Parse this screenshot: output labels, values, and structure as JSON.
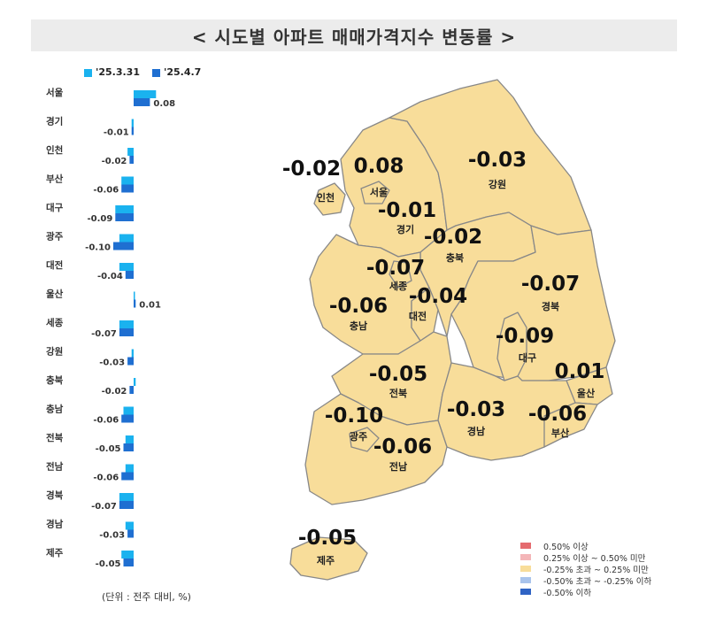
{
  "title": "< 시도별 아파트 매매가격지수 변동률 >",
  "legend": [
    {
      "label": "'25.3.31",
      "color": "#1ab2ef"
    },
    {
      "label": "'25.4.7",
      "color": "#1f6fd1"
    }
  ],
  "unit_note": "(단위 : 전주 대비, %)",
  "chart_data": {
    "type": "bar",
    "orientation": "horizontal",
    "categories": [
      "서울",
      "경기",
      "인천",
      "부산",
      "대구",
      "광주",
      "대전",
      "울산",
      "세종",
      "강원",
      "충북",
      "충남",
      "전북",
      "전남",
      "경북",
      "경남",
      "제주"
    ],
    "series": [
      {
        "name": "'25.3.31",
        "values": [
          0.11,
          -0.01,
          -0.03,
          -0.06,
          -0.09,
          -0.07,
          -0.07,
          0.0,
          -0.07,
          -0.01,
          0.01,
          -0.05,
          -0.04,
          -0.04,
          -0.07,
          -0.04,
          -0.06
        ]
      },
      {
        "name": "'25.4.7",
        "values": [
          0.08,
          -0.01,
          -0.02,
          -0.06,
          -0.09,
          -0.1,
          -0.04,
          0.01,
          -0.07,
          -0.03,
          -0.02,
          -0.06,
          -0.05,
          -0.06,
          -0.07,
          -0.03,
          -0.05
        ]
      }
    ],
    "value_labels": [
      "0.08",
      "-0.01",
      "-0.02",
      "-0.06",
      "-0.09",
      "-0.10",
      "-0.04",
      "0.01",
      "-0.07",
      "-0.03",
      "-0.02",
      "-0.06",
      "-0.05",
      "-0.06",
      "-0.07",
      "-0.03",
      "-0.05"
    ]
  },
  "map": {
    "regions": [
      {
        "name": "인천",
        "value": "-0.02"
      },
      {
        "name": "서울",
        "value": "0.08"
      },
      {
        "name": "경기",
        "value": "-0.01"
      },
      {
        "name": "강원",
        "value": "-0.03"
      },
      {
        "name": "충북",
        "value": "-0.02"
      },
      {
        "name": "세종",
        "value": "-0.07"
      },
      {
        "name": "충남",
        "value": "-0.06"
      },
      {
        "name": "대전",
        "value": "-0.04"
      },
      {
        "name": "경북",
        "value": "-0.07"
      },
      {
        "name": "대구",
        "value": "-0.09"
      },
      {
        "name": "울산",
        "value": "0.01"
      },
      {
        "name": "전북",
        "value": "-0.05"
      },
      {
        "name": "광주",
        "value": "-0.10"
      },
      {
        "name": "경남",
        "value": "-0.03"
      },
      {
        "name": "부산",
        "value": "-0.06"
      },
      {
        "name": "전남",
        "value": "-0.06"
      },
      {
        "name": "제주",
        "value": "-0.05"
      }
    ],
    "fill_color": "#f8dd9a",
    "legend": [
      {
        "label": "0.50% 이상",
        "color": "#e56b6f"
      },
      {
        "label": "0.25% 이상 ~ 0.50% 미만",
        "color": "#f4b6b8"
      },
      {
        "label": "-0.25% 초과 ~ 0.25% 미만",
        "color": "#f8dd9a"
      },
      {
        "label": "-0.50% 초과 ~ -0.25% 이하",
        "color": "#a9c4ec"
      },
      {
        "label": "-0.50% 이하",
        "color": "#2f63c4"
      }
    ]
  }
}
